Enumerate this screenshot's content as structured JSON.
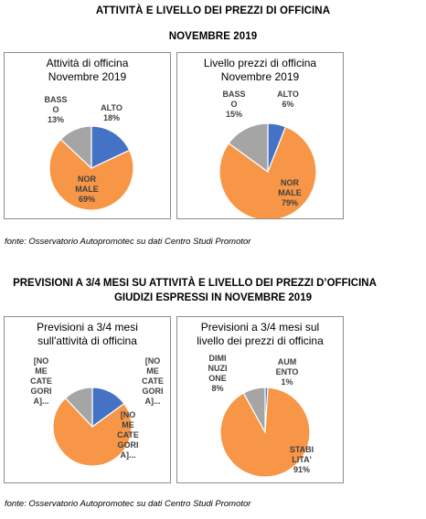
{
  "heading1": {
    "line1": "ATTIVITÀ E LIVELLO DEI PREZZI DI OFFICINA",
    "line2": "NOVEMBRE 2019"
  },
  "heading2": {
    "line1": "PREVISIONI A 3/4 MESI SU ATTIVITÀ E LIVELLO DEI PREZZI D’OFFICINA",
    "line2": "GIUDIZI ESPRESSI IN NOVEMBRE 2019"
  },
  "source1": "fonte: Osservatorio Autopromotec su dati Centro Studi Promotor",
  "source2": "fonte: Osservatorio Autopromotec su dati Centro Studi Promotor",
  "colors": {
    "blue": "#4472C4",
    "orange": "#F79646",
    "gray": "#A5A5A5",
    "border": "#8C8C8C"
  },
  "chart_data": [
    {
      "type": "pie",
      "title_lines": [
        "Attività di officina",
        "Novembre 2019"
      ],
      "slices": [
        {
          "label_lines": [
            "ALTO",
            "18%"
          ],
          "value": 18,
          "color": "#4472C4"
        },
        {
          "label_lines": [
            "NOR",
            "MALE",
            "69%"
          ],
          "value": 69,
          "color": "#F79646"
        },
        {
          "label_lines": [
            "BASS",
            "O",
            "13%"
          ],
          "value": 13,
          "color": "#A5A5A5"
        }
      ]
    },
    {
      "type": "pie",
      "title_lines": [
        "Livello prezzi di officina",
        "Novembre 2019"
      ],
      "slices": [
        {
          "label_lines": [
            "ALTO",
            "6%"
          ],
          "value": 6,
          "color": "#4472C4"
        },
        {
          "label_lines": [
            "NOR",
            "MALE",
            "79%"
          ],
          "value": 79,
          "color": "#F79646"
        },
        {
          "label_lines": [
            "BASS",
            "O",
            "15%"
          ],
          "value": 15,
          "color": "#A5A5A5"
        }
      ]
    },
    {
      "type": "pie",
      "title_lines": [
        "Previsioni a 3/4 mesi",
        "sull'attività di officina"
      ],
      "slices": [
        {
          "label_lines": [
            "[NO",
            "ME",
            "CATE",
            "GORI",
            "A]..."
          ],
          "value": 15,
          "color": "#4472C4"
        },
        {
          "label_lines": [
            "[NO",
            "ME",
            "CATE",
            "GORI",
            "A]..."
          ],
          "value": 73,
          "color": "#F79646"
        },
        {
          "label_lines": [
            "[NO",
            "ME",
            "CATE",
            "GORI",
            "A]..."
          ],
          "value": 12,
          "color": "#A5A5A5"
        }
      ]
    },
    {
      "type": "pie",
      "title_lines": [
        "Previsioni a 3/4 mesi sul",
        "livello dei prezzi di officina"
      ],
      "slices": [
        {
          "label_lines": [
            "AUM",
            "ENTO",
            "1%"
          ],
          "value": 1,
          "color": "#4472C4"
        },
        {
          "label_lines": [
            "STABI",
            "LITA'",
            "91%"
          ],
          "value": 91,
          "color": "#F79646"
        },
        {
          "label_lines": [
            "DIMI",
            "NUZI",
            "ONE",
            "8%"
          ],
          "value": 8,
          "color": "#A5A5A5"
        }
      ]
    }
  ]
}
